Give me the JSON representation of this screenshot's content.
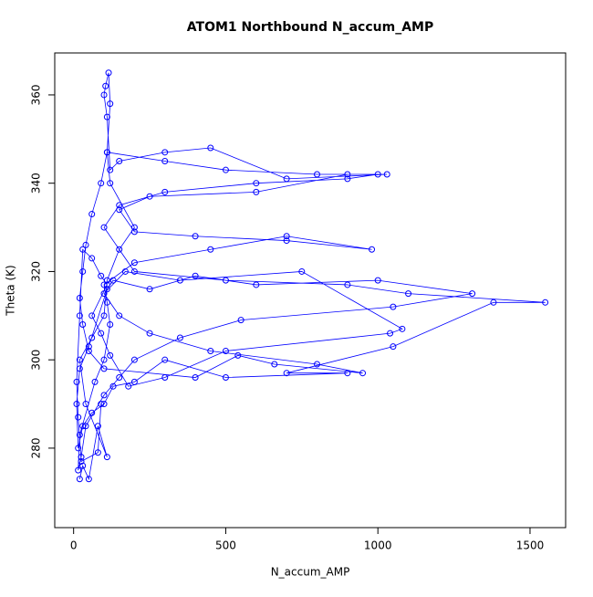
{
  "chart_data": {
    "type": "line",
    "title": "ATOM1 Northbound N_accum_AMP",
    "x_label": "N_accum_AMP",
    "y_label": "Theta (K)",
    "color": "#0000ff",
    "markers": true,
    "x": [
      20,
      30,
      50,
      80,
      110,
      40,
      20,
      60,
      100,
      110,
      150,
      200,
      120,
      110,
      300,
      500,
      800,
      1000,
      900,
      600,
      300,
      150,
      100,
      200,
      500,
      900,
      1100,
      1550,
      1380,
      1050,
      700,
      900,
      500,
      300,
      200,
      130,
      100,
      60,
      30,
      15,
      10,
      20,
      50,
      110,
      130,
      250,
      400,
      600,
      1000,
      1310,
      1050,
      550,
      350,
      200,
      150,
      100,
      40,
      25,
      15,
      20,
      70,
      100,
      120,
      110,
      100,
      200,
      450,
      700,
      980,
      700,
      400,
      200,
      150,
      250,
      600,
      900,
      1030,
      700,
      450,
      300,
      150,
      120,
      110,
      100,
      105,
      115,
      120,
      110,
      90,
      60,
      40,
      30,
      20,
      30,
      50,
      100,
      400,
      540,
      660,
      950,
      800,
      450,
      250,
      150,
      100,
      170,
      350,
      750,
      1080,
      1040,
      500,
      300,
      180,
      120,
      90,
      60,
      110,
      90,
      60,
      30,
      20,
      10,
      15,
      25,
      80,
      90
    ],
    "values": [
      273,
      276,
      273,
      285,
      278,
      290,
      300,
      305,
      310,
      318,
      325,
      330,
      340,
      347,
      345,
      343,
      342,
      342,
      341,
      340,
      338,
      335,
      330,
      320,
      318,
      317,
      315,
      313,
      313,
      303,
      297,
      297,
      296,
      300,
      295,
      294,
      290,
      288,
      285,
      280,
      290,
      298,
      303,
      316,
      318,
      316,
      319,
      317,
      318,
      315,
      312,
      309,
      305,
      300,
      296,
      292,
      285,
      278,
      275,
      283,
      295,
      300,
      308,
      313,
      317,
      322,
      325,
      328,
      325,
      327,
      328,
      329,
      334,
      337,
      338,
      342,
      342,
      341,
      348,
      347,
      345,
      343,
      355,
      360,
      362,
      365,
      358,
      347,
      340,
      333,
      326,
      320,
      314,
      308,
      302,
      298,
      296,
      301,
      299,
      297,
      299,
      302,
      306,
      310,
      315,
      320,
      318,
      320,
      307,
      306,
      302,
      296,
      294,
      301,
      306,
      310,
      317,
      319,
      323,
      325,
      310,
      295,
      287,
      277,
      279,
      290
    ],
    "xlim": [
      -62,
      1617
    ],
    "ylim": [
      262,
      369.5
    ],
    "xticks": [
      0,
      500,
      1000,
      1500
    ],
    "yticks": [
      280,
      300,
      320,
      340,
      360
    ]
  }
}
